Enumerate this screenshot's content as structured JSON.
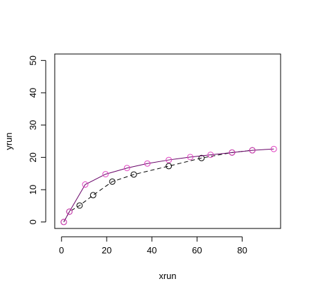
{
  "chart_data": {
    "type": "line",
    "xlabel": "xrun",
    "ylabel": "yrun",
    "xlim": [
      -3,
      97
    ],
    "ylim": [
      -2,
      52
    ],
    "x_ticks": [
      0,
      20,
      40,
      60,
      80
    ],
    "y_ticks": [
      0,
      10,
      20,
      30,
      40,
      50
    ],
    "grid": false,
    "series": [
      {
        "color": "#000000",
        "line_style": "dashed",
        "marker": "open-circle",
        "points": [
          {
            "x": 1,
            "y": 0
          },
          {
            "x": 3.5,
            "y": 3.2
          },
          {
            "x": 8,
            "y": 5.1
          },
          {
            "x": 14,
            "y": 8.3
          },
          {
            "x": 22.5,
            "y": 12.5
          },
          {
            "x": 32,
            "y": 14.7
          },
          {
            "x": 47.5,
            "y": 17.3
          },
          {
            "x": 62,
            "y": 19.8
          },
          {
            "x": 75.5,
            "y": 21.5
          },
          {
            "x": 84.5,
            "y": 22.2
          }
        ]
      },
      {
        "color": "#660066",
        "line_style": "solid",
        "marker": "none",
        "points": [
          {
            "x": 1,
            "y": 0
          },
          {
            "x": 3.5,
            "y": 3.2
          },
          {
            "x": 10.5,
            "y": 11.6
          },
          {
            "x": 19.5,
            "y": 14.8
          },
          {
            "x": 29,
            "y": 16.7
          },
          {
            "x": 38,
            "y": 18.1
          },
          {
            "x": 47.5,
            "y": 19.2
          },
          {
            "x": 57,
            "y": 20.1
          },
          {
            "x": 66,
            "y": 20.8
          },
          {
            "x": 75.5,
            "y": 21.5
          },
          {
            "x": 84.5,
            "y": 22.2
          },
          {
            "x": 94,
            "y": 22.6
          }
        ]
      },
      {
        "color": "#e040c0",
        "line_style": "none",
        "marker": "open-circle",
        "points": [
          {
            "x": 1,
            "y": 0
          },
          {
            "x": 3.5,
            "y": 3.2
          },
          {
            "x": 10.5,
            "y": 11.6
          },
          {
            "x": 19.5,
            "y": 14.8
          },
          {
            "x": 29,
            "y": 16.7
          },
          {
            "x": 38,
            "y": 18.1
          },
          {
            "x": 47.5,
            "y": 19.2
          },
          {
            "x": 57,
            "y": 20.1
          },
          {
            "x": 66,
            "y": 20.8
          },
          {
            "x": 75.5,
            "y": 21.5
          },
          {
            "x": 84.5,
            "y": 22.2
          },
          {
            "x": 94,
            "y": 22.6
          }
        ]
      }
    ]
  }
}
